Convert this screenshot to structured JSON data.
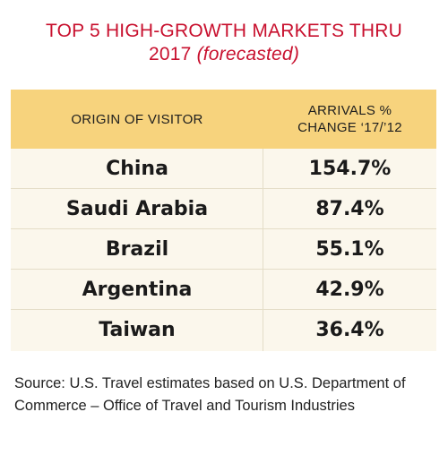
{
  "title": {
    "line1": "TOP 5 HIGH-GROWTH MARKETS THRU",
    "line2_year": "2017",
    "line2_note": "(forecasted)"
  },
  "chart_data": {
    "type": "table",
    "columns": [
      "ORIGIN OF VISITOR",
      "ARRIVALS %",
      "CHANGE ‘17/’12"
    ],
    "column_headers": {
      "origin": "ORIGIN OF VISITOR",
      "change_line1": "ARRIVALS %",
      "change_line2": "CHANGE ‘17/’12"
    },
    "rows": [
      {
        "origin": "China",
        "change": "154.7%"
      },
      {
        "origin": "Saudi Arabia",
        "change": "87.4%"
      },
      {
        "origin": "Brazil",
        "change": "55.1%"
      },
      {
        "origin": "Argentina",
        "change": "42.9%"
      },
      {
        "origin": "Taiwan",
        "change": "36.4%"
      }
    ],
    "values": [
      154.7,
      87.4,
      55.1,
      42.9,
      36.4
    ]
  },
  "source": "Source: U.S. Travel estimates based on U.S. Department of Commerce – Office of Travel and Tourism Industries",
  "colors": {
    "title": "#c8102e",
    "header_bg": "#f7d37d",
    "body_bg": "#fbf7ec",
    "divider": "#e4ddc7"
  }
}
